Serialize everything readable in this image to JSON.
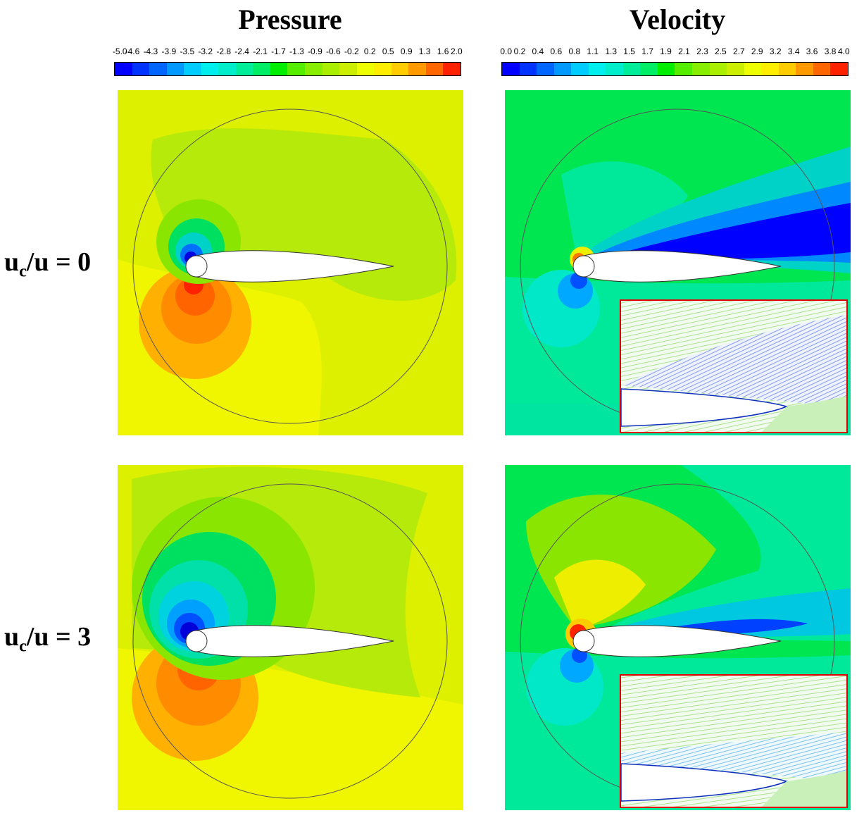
{
  "titles": {
    "pressure": "Pressure",
    "velocity": "Velocity"
  },
  "rows": [
    {
      "label_main": "u",
      "label_sub": "c",
      "label_rest": "/u = 0"
    },
    {
      "label_main": "u",
      "label_sub": "c",
      "label_rest": "/u = 3"
    }
  ],
  "pressure_scale": {
    "ticks": [
      "-5.0",
      "-4.6",
      "-4.3",
      "-3.9",
      "-3.5",
      "-3.2",
      "-2.8",
      "-2.4",
      "-2.1",
      "-1.7",
      "-1.3",
      "-0.9",
      "-0.6",
      "-0.2",
      "0.2",
      "0.5",
      "0.9",
      "1.3",
      "1.6",
      "2.0"
    ]
  },
  "velocity_scale": {
    "ticks": [
      "0.0",
      "0.2",
      "0.4",
      "0.6",
      "0.8",
      "1.1",
      "1.3",
      "1.5",
      "1.7",
      "1.9",
      "2.1",
      "2.3",
      "2.5",
      "2.7",
      "2.9",
      "3.2",
      "3.4",
      "3.6",
      "3.8",
      "4.0"
    ]
  },
  "colors": {
    "scale": [
      "#0000ff",
      "#0033ff",
      "#0066ff",
      "#0099ff",
      "#00ccff",
      "#00eeee",
      "#00eecc",
      "#00ee99",
      "#00ee66",
      "#00ee00",
      "#55ee00",
      "#88ee00",
      "#aaee00",
      "#ccee00",
      "#eeff00",
      "#ffee00",
      "#ffcc00",
      "#ff9900",
      "#ff6600",
      "#ff2200"
    ],
    "inset_border": "#ff0000"
  }
}
